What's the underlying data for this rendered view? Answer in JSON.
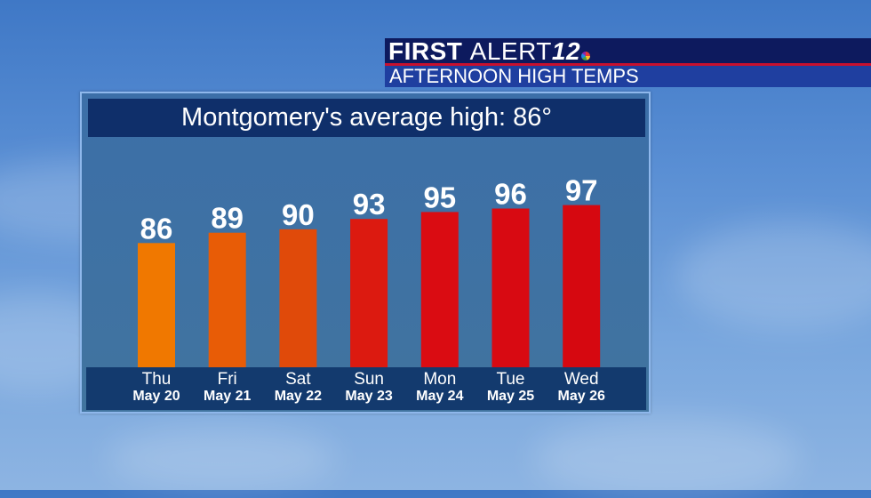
{
  "branding": {
    "title_bold": "FIRST",
    "title_thin": "ALERT",
    "title_number": "12",
    "subtitle": "AFTERNOON HIGH TEMPS"
  },
  "panel": {
    "title": "Montgomery's average high: 86°"
  },
  "chart_data": {
    "type": "bar",
    "title": "Montgomery's average high: 86°",
    "categories": [
      "Thu",
      "Fri",
      "Sat",
      "Sun",
      "Mon",
      "Tue",
      "Wed"
    ],
    "dates": [
      "May 20",
      "May 21",
      "May 22",
      "May 23",
      "May 24",
      "May 25",
      "May 26"
    ],
    "values": [
      86,
      89,
      90,
      93,
      95,
      96,
      97
    ],
    "value_labels": [
      "86",
      "89",
      "90",
      "93",
      "95",
      "96",
      "97"
    ],
    "bar_colors": [
      "#f07800",
      "#e85c06",
      "#e04a0a",
      "#dc1a10",
      "#da0c12",
      "#d80a12",
      "#d60810"
    ],
    "xlabel": "",
    "ylabel": "",
    "ylim": [
      50,
      100
    ],
    "grid": false,
    "legend": "none"
  },
  "colors": {
    "brand_bar": "#0d1a5e",
    "brand_accent": "#c8102e",
    "panel_title_bg": "#0f2f6a"
  }
}
